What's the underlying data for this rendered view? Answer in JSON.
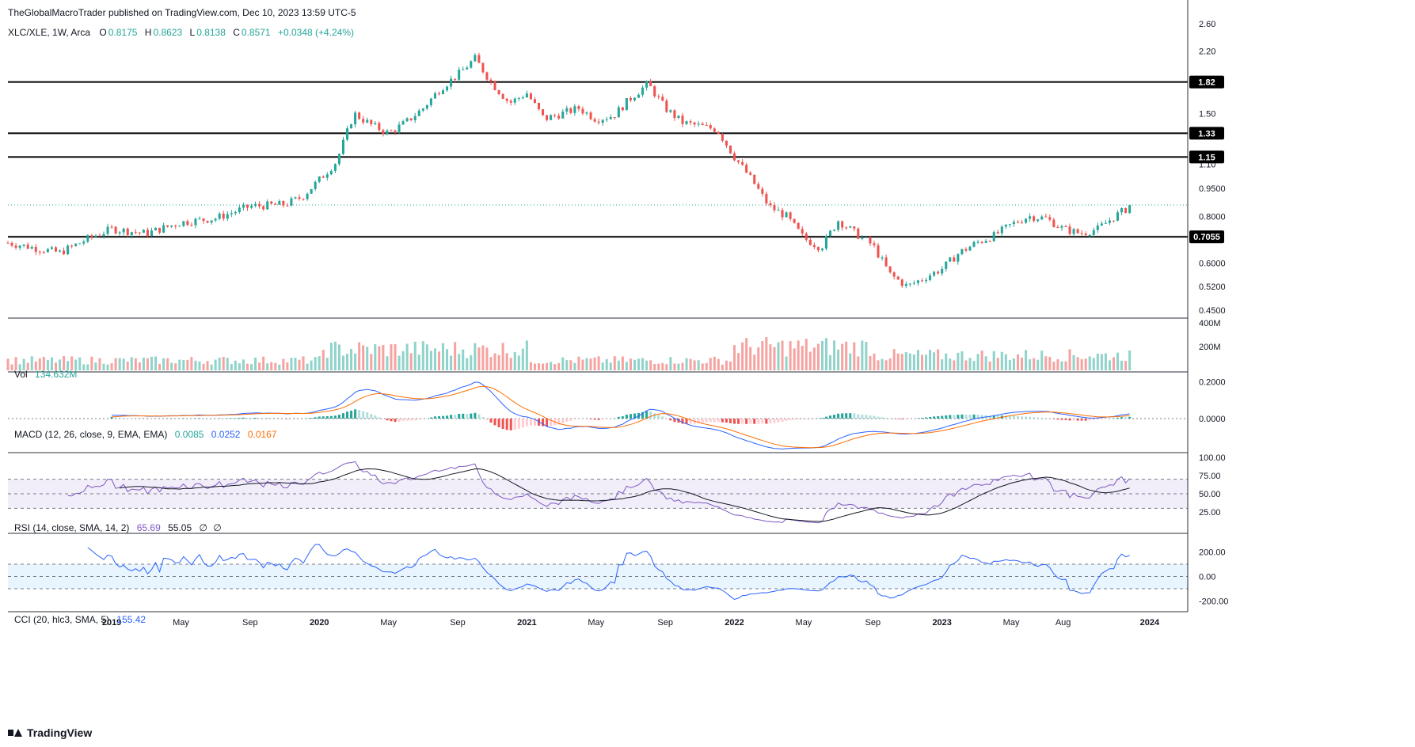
{
  "header": {
    "published": "TheGlobalMacroTrader published on TradingView.com, Dec 10, 2023 13:59 UTC-5"
  },
  "footer": {
    "brand": "TradingView"
  },
  "colors": {
    "up": "#26a69a",
    "down": "#ef5350",
    "vol_up": "#8fd3ca",
    "vol_down": "#f5a3a1",
    "macd": "#2962ff",
    "signal": "#ff6d00",
    "rsi": "#7e57c2",
    "cci": "#2962ff",
    "grid_sep": "#2a2e39"
  },
  "price_legend": {
    "symbol": "XLC/XLE, 1W, Arca",
    "o_label": "O",
    "o": "0.8175",
    "h_label": "H",
    "h": "0.8623",
    "l_label": "L",
    "l": "0.8138",
    "c_label": "C",
    "c": "0.8571",
    "change": "+0.0348 (+4.24%)"
  },
  "vol_legend": {
    "label": "Vol",
    "value": "134.632M"
  },
  "macd_legend": {
    "label": "MACD (12, 26, close, 9, EMA, EMA)",
    "hist": "0.0085",
    "macd": "0.0252",
    "signal": "0.0167"
  },
  "rsi_legend": {
    "label": "RSI (14, close, SMA, 14, 2)",
    "rsi": "65.69",
    "ma": "55.05",
    "na1": "∅",
    "na2": "∅"
  },
  "cci_legend": {
    "label": "CCI (20, hlc3, SMA, 5)",
    "value": "155.42"
  },
  "chart_data": {
    "type": "candlestick",
    "symbol": "XLC/XLE",
    "interval": "1W",
    "scale": "log",
    "price_axis_ticks": [
      "2.60",
      "2.20",
      "1.82",
      "1.50",
      "1.33",
      "1.15",
      "1.10",
      "0.9500",
      "0.8000",
      "0.7055",
      "0.6000",
      "0.5200",
      "0.4500"
    ],
    "horizontal_levels": [
      {
        "label": "1.82",
        "value": 1.82
      },
      {
        "label": "1.33",
        "value": 1.33
      },
      {
        "label": "1.15",
        "value": 1.15
      },
      {
        "label": "0.7055",
        "value": 0.7055
      }
    ],
    "last_close": 0.8571,
    "x_axis_labels": [
      "2019",
      "May",
      "Sep",
      "2020",
      "May",
      "Sep",
      "2021",
      "May",
      "Sep",
      "2022",
      "May",
      "Sep",
      "2023",
      "May",
      "Aug",
      "2024"
    ],
    "approx_weekly_closes": {
      "2018-07": 0.68,
      "2018-10": 0.64,
      "2018-12": 0.71,
      "2019-01": 0.74,
      "2019-03": 0.72,
      "2019-05": 0.77,
      "2019-07": 0.79,
      "2019-09": 0.85,
      "2019-11": 0.86,
      "2019-12": 0.9,
      "2020-01": 1.0,
      "2020-02": 1.12,
      "2020-03": 1.5,
      "2020-04": 1.4,
      "2020-05": 1.33,
      "2020-06": 1.42,
      "2020-07": 1.55,
      "2020-08": 1.75,
      "2020-09": 1.9,
      "2020-10": 2.1,
      "2020-11": 1.8,
      "2020-12": 1.6,
      "2021-01": 1.7,
      "2021-02": 1.45,
      "2021-04": 1.55,
      "2021-05": 1.45,
      "2021-06": 1.48,
      "2021-07": 1.65,
      "2021-08": 1.8,
      "2021-09": 1.55,
      "2021-10": 1.42,
      "2021-12": 1.36,
      "2022-01": 1.15,
      "2022-02": 1.0,
      "2022-03": 0.85,
      "2022-04": 0.8,
      "2022-05": 0.7,
      "2022-06": 0.66,
      "2022-07": 0.78,
      "2022-08": 0.72,
      "2022-09": 0.67,
      "2022-10": 0.56,
      "2022-11": 0.52,
      "2022-12": 0.55,
      "2023-01": 0.58,
      "2023-02": 0.64,
      "2023-03": 0.68,
      "2023-04": 0.71,
      "2023-05": 0.76,
      "2023-06": 0.8,
      "2023-07": 0.79,
      "2023-08": 0.74,
      "2023-09": 0.72,
      "2023-10": 0.74,
      "2023-11": 0.8,
      "2023-12": 0.857
    },
    "volume": {
      "axis_ticks": [
        "400M",
        "200M"
      ],
      "last": "134.632M"
    },
    "macd": {
      "axis_ticks": [
        "0.2000",
        "0.0000"
      ],
      "last_macd": 0.0252,
      "last_signal": 0.0167,
      "last_hist": 0.0085
    },
    "rsi": {
      "axis_ticks": [
        "100.00",
        "75.00",
        "50.00",
        "25.00"
      ],
      "bands": [
        70,
        50,
        30
      ],
      "last": 65.69,
      "ma_last": 55.05
    },
    "cci": {
      "axis_ticks": [
        "200.00",
        "0.00",
        "-200.00"
      ],
      "bands": [
        100,
        0,
        -100
      ],
      "last": 155.42
    }
  }
}
